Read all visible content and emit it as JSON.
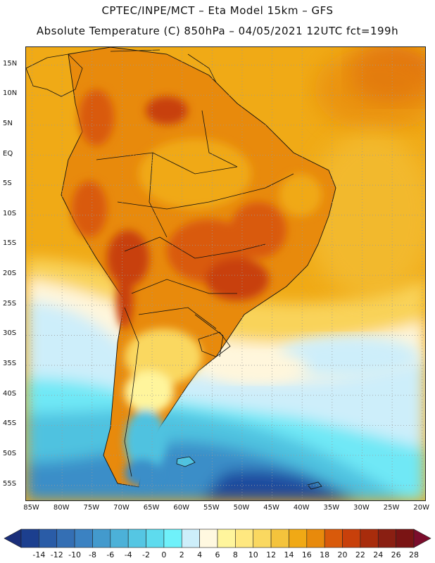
{
  "header": {
    "title_line1": "CPTEC/INPE/MCT –  Eta Model 15km – GFS",
    "title_line2": "Absolute Temperature (C) 850hPa – 04/05/2021 12UTC fct=199h"
  },
  "axes": {
    "latitude_ticks": [
      "15N",
      "10N",
      "5N",
      "EQ",
      "5S",
      "10S",
      "15S",
      "20S",
      "25S",
      "30S",
      "35S",
      "40S",
      "45S",
      "50S",
      "55S"
    ],
    "longitude_ticks": [
      "85W",
      "80W",
      "75W",
      "70W",
      "65W",
      "60W",
      "55W",
      "50W",
      "45W",
      "40W",
      "35W",
      "30W",
      "25W",
      "20W"
    ],
    "lat_range": [
      18,
      -57.5
    ],
    "lon_range": [
      -86,
      -19.5
    ],
    "grid": "dotted"
  },
  "colorbar": {
    "labels": [
      "-14",
      "-12",
      "-10",
      "-8",
      "-6",
      "-4",
      "-2",
      "0",
      "2",
      "4",
      "6",
      "8",
      "10",
      "12",
      "14",
      "16",
      "18",
      "20",
      "22",
      "24",
      "26",
      "28"
    ],
    "colors": [
      "#1c3f8f",
      "#2a5ca7",
      "#346fb4",
      "#3b82c2",
      "#439acd",
      "#4cb1d8",
      "#55c6e3",
      "#5edbee",
      "#6ff1fa",
      "#cdeefa",
      "#fff8e0",
      "#fff59c",
      "#ffe880",
      "#fad860",
      "#f4c33c",
      "#f0a915",
      "#e88a0c",
      "#d95a0b",
      "#c8400b",
      "#a82c0c",
      "#8a1f12",
      "#7a1414"
    ],
    "under_color": "#1a2e7a",
    "over_color": "#7b0d2c"
  },
  "map_colors": {
    "ocean_background": "#f0aa16",
    "land_border": "#111111"
  }
}
